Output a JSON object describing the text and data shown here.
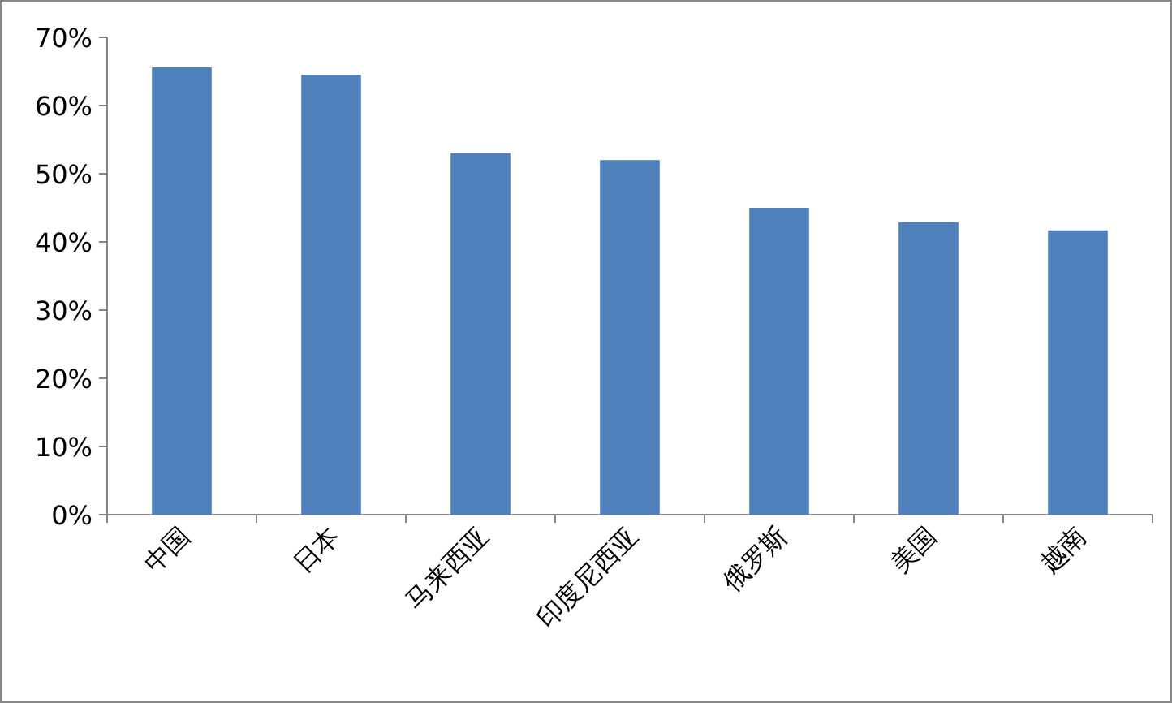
{
  "chart_data": {
    "type": "bar",
    "categories": [
      "中国",
      "日本",
      "马来西亚",
      "印度尼西亚",
      "俄罗斯",
      "美国",
      "越南"
    ],
    "values": [
      65.6,
      64.5,
      53,
      52,
      45,
      42.9,
      41.7
    ],
    "color": "#4f81bd",
    "ylim": [
      0,
      70
    ],
    "yticks": [
      {
        "value": 0,
        "label": "0%"
      },
      {
        "value": 10,
        "label": "10%"
      },
      {
        "value": 20,
        "label": "20%"
      },
      {
        "value": 30,
        "label": "30%"
      },
      {
        "value": 40,
        "label": "40%"
      },
      {
        "value": 50,
        "label": "50%"
      },
      {
        "value": 60,
        "label": "60%"
      },
      {
        "value": 70,
        "label": "70%"
      }
    ],
    "grid": false
  }
}
